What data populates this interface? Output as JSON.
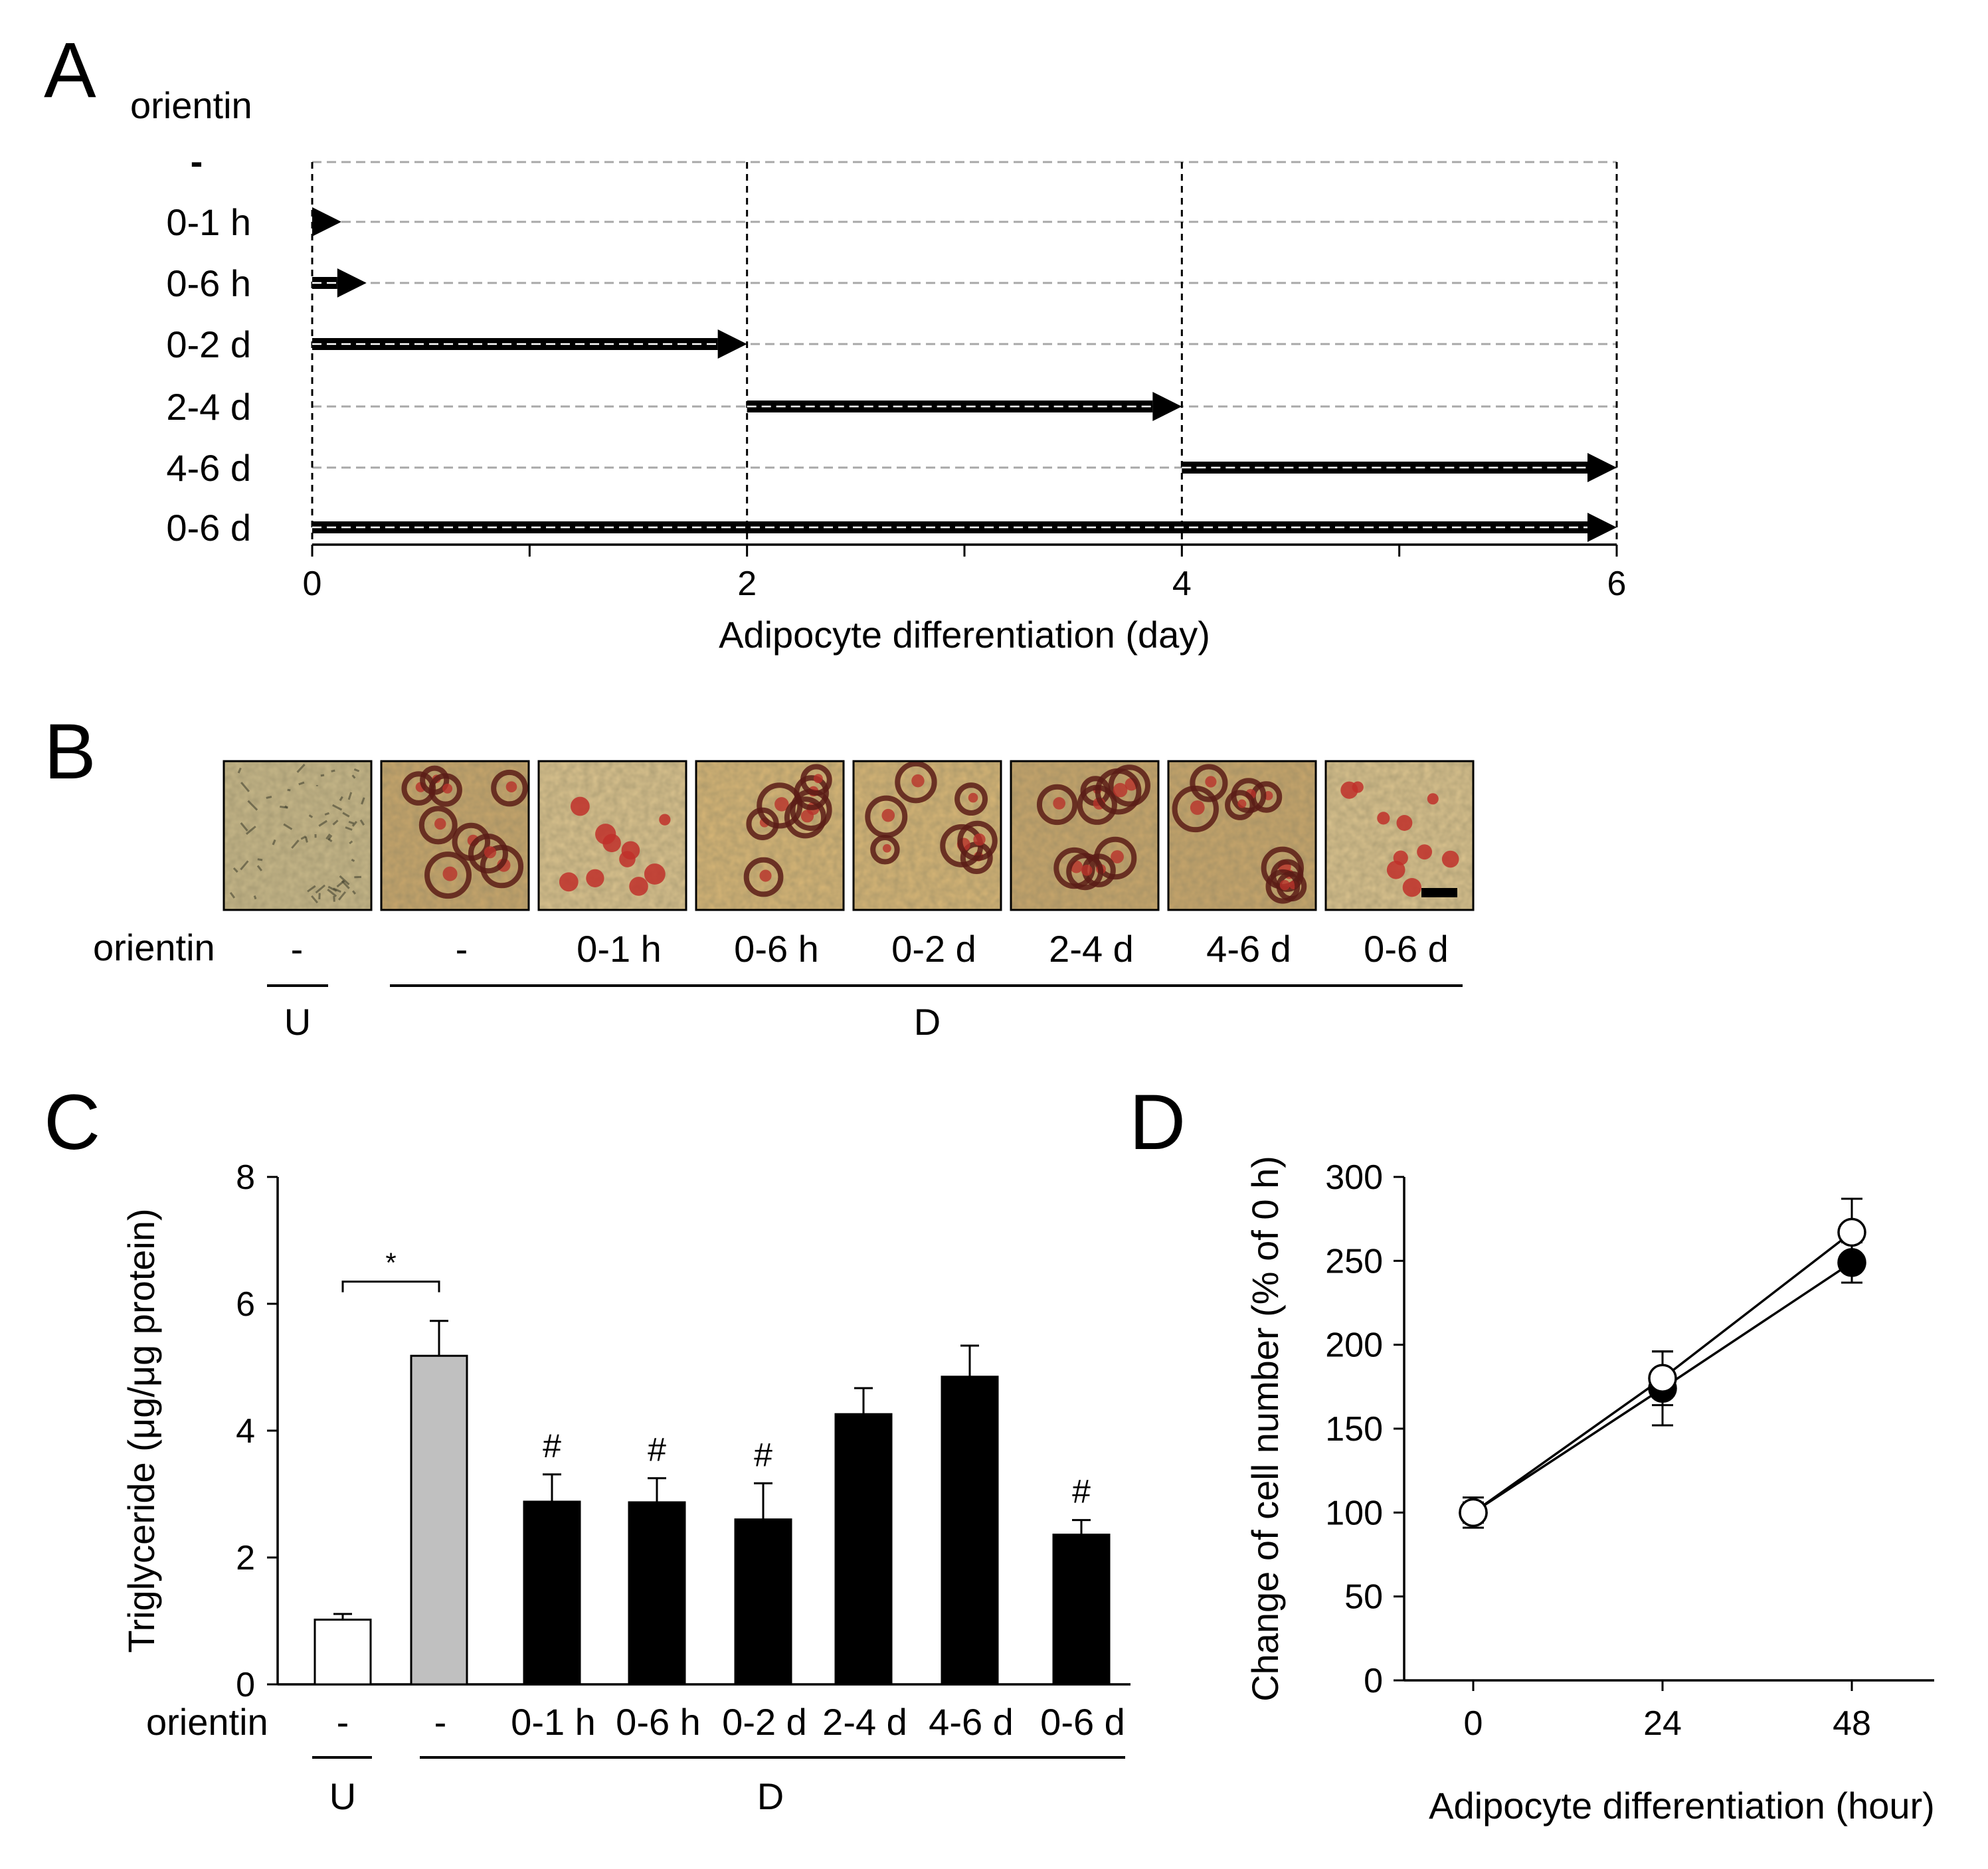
{
  "chart_data": [
    {
      "panel": "A",
      "type": "timeline",
      "row_header": "orientin",
      "rows": [
        {
          "label": "-",
          "start": null,
          "end": null
        },
        {
          "label": "0-1 h",
          "start": 0,
          "end": 0.042
        },
        {
          "label": "0-6 h",
          "start": 0,
          "end": 0.25
        },
        {
          "label": "0-2 d",
          "start": 0,
          "end": 2
        },
        {
          "label": "2-4 d",
          "start": 2,
          "end": 4
        },
        {
          "label": "4-6 d",
          "start": 4,
          "end": 6
        },
        {
          "label": "0-6 d",
          "start": 0,
          "end": 6
        }
      ],
      "xlim": [
        0,
        6
      ],
      "xticks": [
        0,
        2,
        4,
        6
      ],
      "xlabel": "Adipocyte differentiation (day)"
    },
    {
      "panel": "B",
      "type": "image_strip",
      "row_header": "orientin",
      "images": [
        {
          "label": "-",
          "stain": "none"
        },
        {
          "label": "-",
          "stain": "heavy"
        },
        {
          "label": "0-1 h",
          "stain": "light"
        },
        {
          "label": "0-6 h",
          "stain": "medium"
        },
        {
          "label": "0-2 d",
          "stain": "medium"
        },
        {
          "label": "2-4 d",
          "stain": "heavy"
        },
        {
          "label": "4-6 d",
          "stain": "heavy"
        },
        {
          "label": "0-6 d",
          "stain": "light"
        }
      ],
      "groups": [
        {
          "label": "U",
          "from": 0,
          "to": 0
        },
        {
          "label": "D",
          "from": 1,
          "to": 7
        }
      ]
    },
    {
      "panel": "C",
      "type": "bar",
      "ylabel": "Triglyceride (μg/μg protein)",
      "ylim": [
        0,
        8
      ],
      "yticks": [
        0,
        2,
        4,
        6,
        8
      ],
      "row_header": "orientin",
      "categories": [
        "-",
        "-",
        "0-1 h",
        "0-6 h",
        "0-2 d",
        "2-4 d",
        "4-6 d",
        "0-6 d"
      ],
      "values": [
        1.02,
        5.18,
        2.88,
        2.87,
        2.6,
        4.26,
        4.85,
        2.36
      ],
      "errors": [
        0.09,
        0.55,
        0.43,
        0.38,
        0.57,
        0.41,
        0.49,
        0.23
      ],
      "colors": [
        "#ffffff",
        "#c0c0c0",
        "#000000",
        "#000000",
        "#000000",
        "#000000",
        "#000000",
        "#000000"
      ],
      "annotations": [
        "",
        "",
        "#",
        "#",
        "#",
        "",
        "",
        "#"
      ],
      "significance": {
        "symbol": "*",
        "from": 0,
        "to": 1
      },
      "groups": [
        {
          "label": "U",
          "from": 0,
          "to": 0
        },
        {
          "label": "D",
          "from": 1,
          "to": 7
        }
      ]
    },
    {
      "panel": "D",
      "type": "line",
      "xlabel": "Adipocyte differentiation (hour)",
      "ylabel": "Change of cell number (% of 0 h)",
      "x": [
        0,
        24,
        48
      ],
      "xticks": [
        0,
        24,
        48
      ],
      "ylim": [
        0,
        300
      ],
      "yticks": [
        0,
        50,
        100,
        150,
        200,
        250,
        300
      ],
      "series": [
        {
          "name": "filled",
          "marker": "filled-circle",
          "values": [
            100,
            174,
            249
          ],
          "errors": [
            9,
            22,
            12
          ]
        },
        {
          "name": "open",
          "marker": "open-circle",
          "values": [
            100,
            180,
            267
          ],
          "errors": [
            6,
            16,
            20
          ]
        }
      ]
    }
  ]
}
